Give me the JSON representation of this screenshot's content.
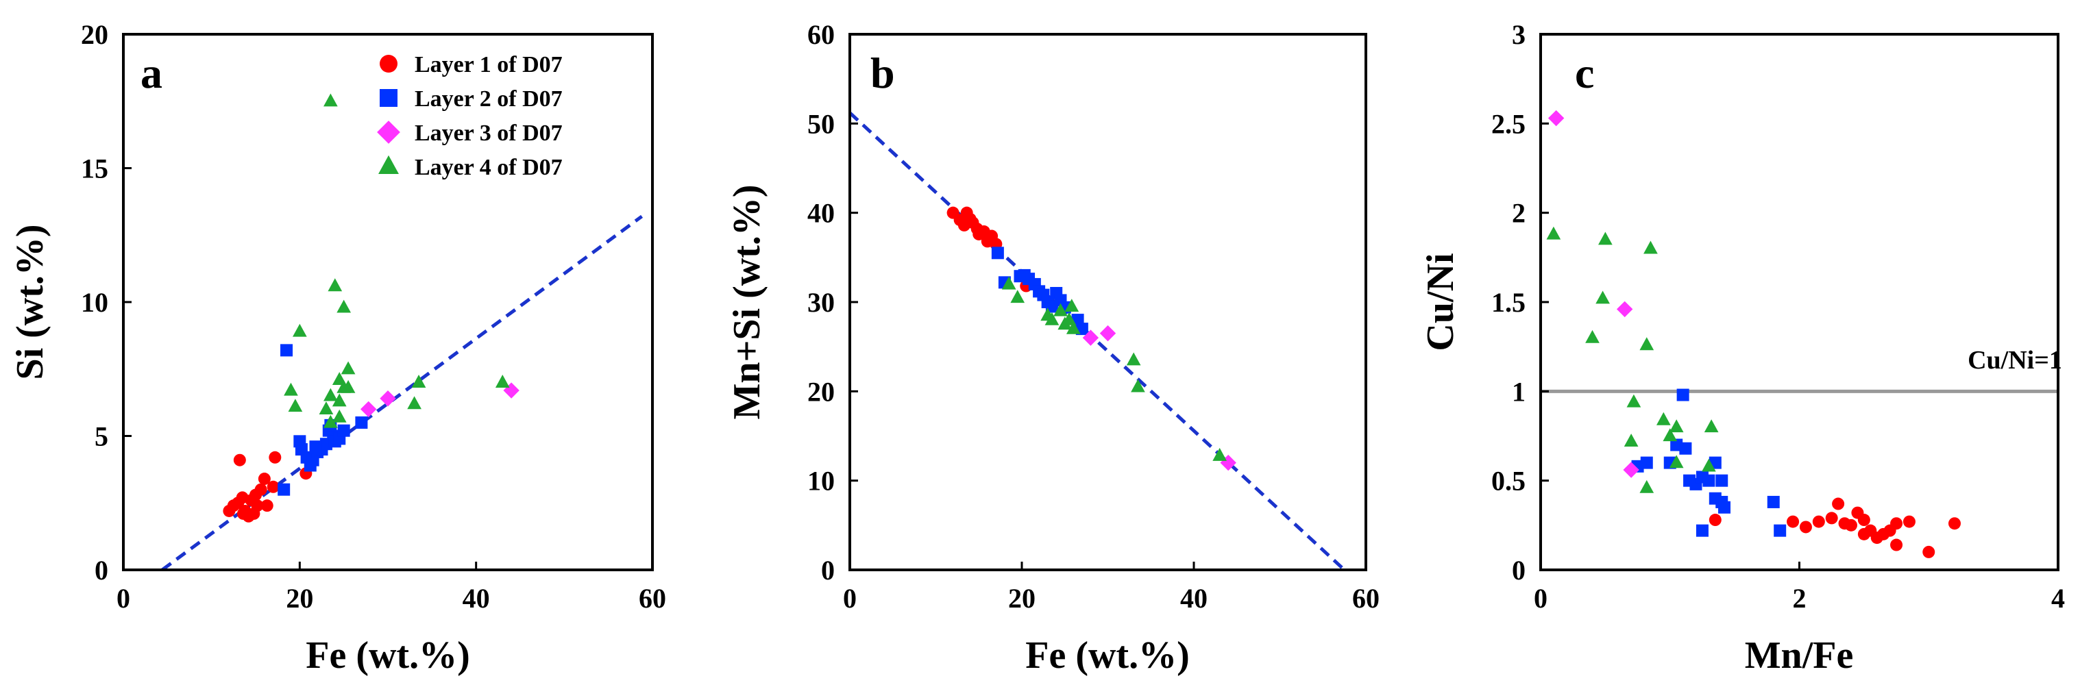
{
  "chart_data": [
    {
      "panel": "a",
      "type": "scatter",
      "xlabel": "Fe (wt.%)",
      "ylabel": "Si (wt.%)",
      "xlim": [
        0,
        60
      ],
      "ylim": [
        0,
        20
      ],
      "xticks": [
        "0",
        "20",
        "40",
        "60"
      ],
      "yticks": [
        "0",
        "5",
        "10",
        "15",
        "20"
      ],
      "legend_position": "top-right",
      "fit_line": {
        "x": [
          4.4,
          58.8
        ],
        "y": [
          0,
          13.2
        ],
        "style": "dashed",
        "color": "#1a33cc"
      },
      "series": [
        {
          "name": "Layer 1 of D07",
          "marker": "circle",
          "color": "#ff0000",
          "points": [
            [
              13.2,
              4.1
            ],
            [
              17.2,
              4.2
            ],
            [
              12.0,
              2.2
            ],
            [
              12.5,
              2.4
            ],
            [
              13.0,
              2.5
            ],
            [
              13.5,
              2.7
            ],
            [
              13.8,
              2.2
            ],
            [
              14.2,
              2.0
            ],
            [
              14.5,
              2.6
            ],
            [
              15.0,
              2.8
            ],
            [
              15.2,
              2.4
            ],
            [
              15.6,
              3.0
            ],
            [
              16.0,
              3.4
            ],
            [
              16.3,
              2.4
            ],
            [
              17.0,
              3.1
            ],
            [
              13.6,
              2.1
            ],
            [
              14.8,
              2.1
            ],
            [
              20.7,
              3.6
            ]
          ]
        },
        {
          "name": "Layer 2 of D07",
          "marker": "square",
          "color": "#0033ff",
          "points": [
            [
              18.5,
              8.2
            ],
            [
              18.2,
              3.0
            ],
            [
              20.0,
              4.8
            ],
            [
              20.2,
              4.5
            ],
            [
              20.8,
              4.2
            ],
            [
              21.2,
              3.9
            ],
            [
              21.5,
              4.1
            ],
            [
              22.0,
              4.4
            ],
            [
              22.5,
              4.5
            ],
            [
              23.0,
              4.7
            ],
            [
              23.3,
              5.2
            ],
            [
              23.8,
              5.0
            ],
            [
              24.0,
              4.8
            ],
            [
              24.5,
              4.9
            ],
            [
              25.0,
              5.2
            ],
            [
              27.0,
              5.5
            ],
            [
              23.5,
              5.4
            ],
            [
              21.8,
              4.6
            ]
          ]
        },
        {
          "name": "Layer 3 of D07",
          "marker": "diamond",
          "color": "#ff33ff",
          "points": [
            [
              44.0,
              6.7
            ],
            [
              30.0,
              6.4
            ],
            [
              27.8,
              6.0
            ]
          ]
        },
        {
          "name": "Layer 4 of D07",
          "marker": "triangle",
          "color": "#22aa33",
          "points": [
            [
              23.5,
              17.5
            ],
            [
              24.0,
              10.6
            ],
            [
              25.0,
              9.8
            ],
            [
              20.0,
              8.9
            ],
            [
              19.0,
              6.7
            ],
            [
              25.5,
              7.5
            ],
            [
              24.5,
              7.1
            ],
            [
              25.0,
              6.8
            ],
            [
              25.5,
              6.8
            ],
            [
              23.5,
              6.5
            ],
            [
              24.5,
              6.3
            ],
            [
              23.0,
              6.0
            ],
            [
              19.5,
              6.1
            ],
            [
              24.5,
              5.7
            ],
            [
              23.5,
              5.5
            ],
            [
              33.0,
              6.2
            ],
            [
              33.5,
              7.0
            ],
            [
              43.0,
              7.0
            ]
          ]
        }
      ]
    },
    {
      "panel": "b",
      "type": "scatter",
      "xlabel": "Fe (wt.%)",
      "ylabel": "Mn+Si (wt.%)",
      "xlim": [
        0,
        60
      ],
      "ylim": [
        0,
        60
      ],
      "xticks": [
        "0",
        "20",
        "40",
        "60"
      ],
      "yticks": [
        "0",
        "10",
        "20",
        "30",
        "40",
        "50",
        "60"
      ],
      "fit_line": {
        "x": [
          0,
          57.5
        ],
        "y": [
          51.2,
          0
        ],
        "style": "dashed",
        "color": "#1a33cc"
      },
      "series": [
        {
          "name": "Layer 1 of D07",
          "marker": "circle",
          "color": "#ff0000",
          "points": [
            [
              12.0,
              40.0
            ],
            [
              12.8,
              39.2
            ],
            [
              13.3,
              38.6
            ],
            [
              13.6,
              40.0
            ],
            [
              14.0,
              39.3
            ],
            [
              14.3,
              38.9
            ],
            [
              14.8,
              38.2
            ],
            [
              15.0,
              37.6
            ],
            [
              15.6,
              37.9
            ],
            [
              16.0,
              36.8
            ],
            [
              16.5,
              37.4
            ],
            [
              17.0,
              36.5
            ],
            [
              20.5,
              31.8
            ]
          ]
        },
        {
          "name": "Layer 2 of D07",
          "marker": "square",
          "color": "#0033ff",
          "points": [
            [
              17.2,
              35.5
            ],
            [
              18.0,
              32.2
            ],
            [
              19.8,
              32.9
            ],
            [
              20.3,
              33.0
            ],
            [
              20.8,
              32.6
            ],
            [
              21.5,
              32.0
            ],
            [
              22.0,
              31.2
            ],
            [
              22.5,
              30.8
            ],
            [
              23.0,
              30.0
            ],
            [
              23.5,
              29.5
            ],
            [
              24.0,
              31.0
            ],
            [
              24.5,
              30.2
            ],
            [
              25.0,
              29.4
            ],
            [
              26.5,
              28.0
            ],
            [
              27.0,
              27.0
            ]
          ]
        },
        {
          "name": "Layer 3 of D07",
          "marker": "diamond",
          "color": "#ff33ff",
          "points": [
            [
              30.0,
              26.5
            ],
            [
              28.0,
              26.0
            ],
            [
              44.0,
              12.0
            ]
          ]
        },
        {
          "name": "Layer 4 of D07",
          "marker": "triangle",
          "color": "#22aa33",
          "points": [
            [
              18.5,
              32.0
            ],
            [
              19.5,
              30.5
            ],
            [
              23.0,
              28.5
            ],
            [
              23.5,
              28.0
            ],
            [
              24.5,
              29.0
            ],
            [
              25.0,
              27.5
            ],
            [
              25.5,
              28.0
            ],
            [
              26.0,
              27.0
            ],
            [
              25.8,
              29.5
            ],
            [
              33.0,
              23.5
            ],
            [
              33.5,
              20.5
            ],
            [
              43.0,
              12.8
            ]
          ]
        }
      ]
    },
    {
      "panel": "c",
      "type": "scatter",
      "xlabel": "Mn/Fe",
      "ylabel": "Cu/Ni",
      "xlim": [
        0,
        4
      ],
      "ylim": [
        0,
        3
      ],
      "xticks": [
        "0",
        "2",
        "4"
      ],
      "yticks": [
        "0",
        "0.5",
        "1",
        "1.5",
        "2",
        "2.5",
        "3"
      ],
      "reference_line": {
        "y": 1,
        "label": "Cu/Ni=1",
        "color": "#999999"
      },
      "series": [
        {
          "name": "Layer 1 of D07",
          "marker": "circle",
          "color": "#ff0000",
          "points": [
            [
              1.95,
              0.27
            ],
            [
              2.05,
              0.24
            ],
            [
              2.15,
              0.27
            ],
            [
              2.25,
              0.29
            ],
            [
              2.3,
              0.37
            ],
            [
              2.35,
              0.26
            ],
            [
              2.4,
              0.25
            ],
            [
              2.45,
              0.32
            ],
            [
              2.5,
              0.28
            ],
            [
              2.5,
              0.2
            ],
            [
              2.55,
              0.22
            ],
            [
              2.6,
              0.18
            ],
            [
              2.65,
              0.2
            ],
            [
              2.7,
              0.22
            ],
            [
              2.75,
              0.26
            ],
            [
              2.75,
              0.14
            ],
            [
              2.85,
              0.27
            ],
            [
              3.0,
              0.1
            ],
            [
              3.2,
              0.26
            ],
            [
              1.35,
              0.28
            ]
          ]
        },
        {
          "name": "Layer 2 of D07",
          "marker": "square",
          "color": "#0033ff",
          "points": [
            [
              0.75,
              0.58
            ],
            [
              0.82,
              0.6
            ],
            [
              1.0,
              0.6
            ],
            [
              1.05,
              0.7
            ],
            [
              1.1,
              0.98
            ],
            [
              1.12,
              0.68
            ],
            [
              1.15,
              0.5
            ],
            [
              1.2,
              0.48
            ],
            [
              1.25,
              0.52
            ],
            [
              1.25,
              0.22
            ],
            [
              1.3,
              0.5
            ],
            [
              1.35,
              0.6
            ],
            [
              1.35,
              0.4
            ],
            [
              1.4,
              0.5
            ],
            [
              1.4,
              0.38
            ],
            [
              1.42,
              0.35
            ],
            [
              1.8,
              0.38
            ],
            [
              1.85,
              0.22
            ]
          ]
        },
        {
          "name": "Layer 3 of D07",
          "marker": "diamond",
          "color": "#ff33ff",
          "points": [
            [
              0.12,
              2.53
            ],
            [
              0.65,
              1.46
            ],
            [
              0.7,
              0.56
            ]
          ]
        },
        {
          "name": "Layer 4 of D07",
          "marker": "triangle",
          "color": "#22aa33",
          "points": [
            [
              0.1,
              1.88
            ],
            [
              0.5,
              1.85
            ],
            [
              0.85,
              1.8
            ],
            [
              0.48,
              1.52
            ],
            [
              0.4,
              1.3
            ],
            [
              0.82,
              1.26
            ],
            [
              0.72,
              0.94
            ],
            [
              0.95,
              0.84
            ],
            [
              1.0,
              0.75
            ],
            [
              1.05,
              0.8
            ],
            [
              1.32,
              0.8
            ],
            [
              0.7,
              0.72
            ],
            [
              1.05,
              0.6
            ],
            [
              1.3,
              0.58
            ],
            [
              0.82,
              0.46
            ]
          ]
        }
      ]
    }
  ]
}
